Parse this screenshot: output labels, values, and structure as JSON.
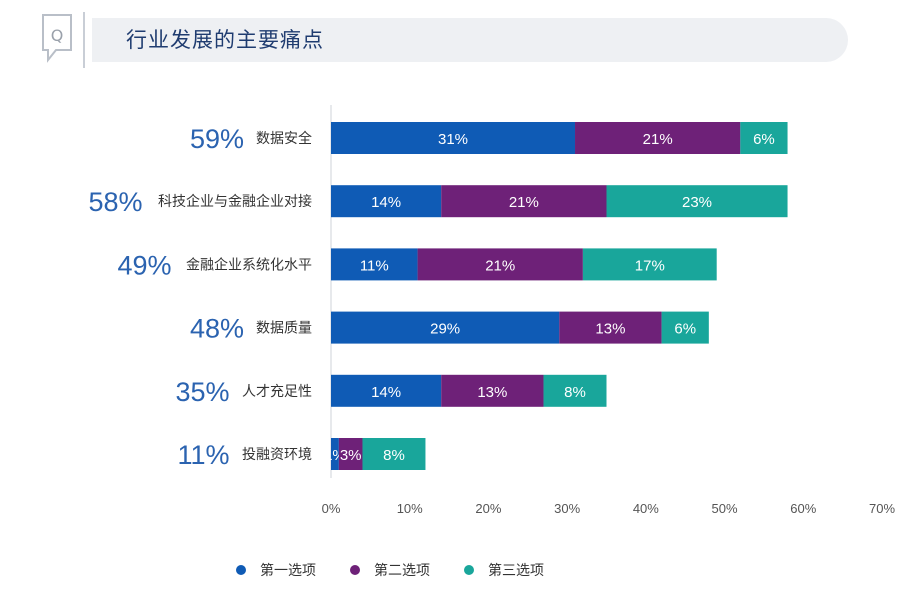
{
  "header": {
    "title": "行业发展的主要痛点",
    "icon_letter": "Q"
  },
  "colors": {
    "series1": "#0f5bb5",
    "series2": "#6e2178",
    "series3": "#19a69b",
    "total_text": "#2b63b0"
  },
  "chart_data": {
    "type": "bar",
    "orientation": "horizontal",
    "stacked": true,
    "categories": [
      "数据安全",
      "科技企业与金融企业对接",
      "金融企业系统化水平",
      "数据质量",
      "人才充足性",
      "投融资环境"
    ],
    "totals": [
      "59%",
      "58%",
      "49%",
      "48%",
      "35%",
      "11%"
    ],
    "series": [
      {
        "name": "第一选项",
        "values": [
          31,
          14,
          11,
          29,
          14,
          1
        ]
      },
      {
        "name": "第二选项",
        "values": [
          21,
          21,
          21,
          13,
          13,
          3
        ]
      },
      {
        "name": "第三选项",
        "values": [
          6,
          23,
          17,
          6,
          8,
          8
        ]
      }
    ],
    "xlim": [
      0,
      70
    ],
    "xticks": [
      "0%",
      "10%",
      "20%",
      "30%",
      "40%",
      "50%",
      "60%",
      "70%"
    ],
    "legend_position": "bottom"
  }
}
